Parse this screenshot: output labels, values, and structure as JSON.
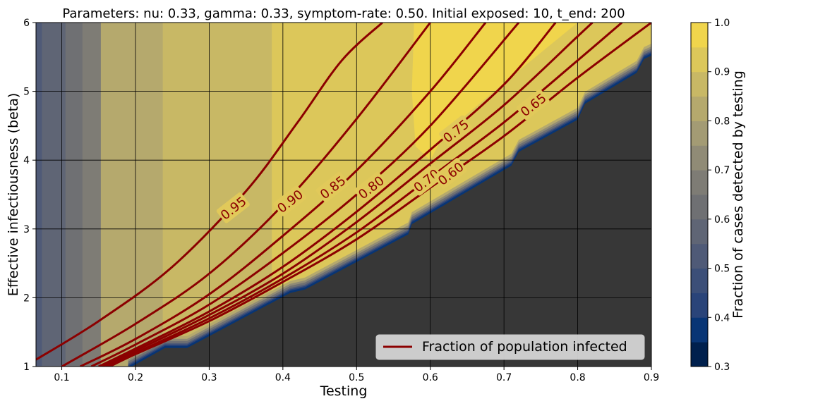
{
  "chart_data": {
    "type": "heatmap",
    "title": "Parameters: nu: 0.33, gamma: 0.33, symptom-rate: 0.50. Initial exposed: 10, t_end: 200",
    "xlabel": "Testing",
    "ylabel": "Effective infectiousness (beta)",
    "xlim": [
      0.065,
      0.9
    ],
    "ylim": [
      1,
      6
    ],
    "x_ticks": [
      "0.1",
      "0.2",
      "0.3",
      "0.4",
      "0.5",
      "0.6",
      "0.7",
      "0.8",
      "0.9"
    ],
    "y_ticks": [
      "1",
      "2",
      "3",
      "4",
      "5",
      "6"
    ],
    "grid": true,
    "colorbar": {
      "label": "Fraction of cases detected by testing",
      "ticks": [
        "0.3",
        "0.4",
        "0.5",
        "0.6",
        "0.7",
        "0.8",
        "0.9",
        "1.0"
      ],
      "levels": [
        0.3,
        0.35,
        0.4,
        0.45,
        0.5,
        0.55,
        0.6,
        0.65,
        0.7,
        0.75,
        0.8,
        0.85,
        0.9,
        0.95,
        1.0
      ],
      "colors": [
        "#00204d",
        "#083575",
        "#2a4479",
        "#3c4f78",
        "#4f5a77",
        "#5f6575",
        "#6f7073",
        "#7e7c75",
        "#908b76",
        "#a39b74",
        "#b5a96d",
        "#c8b865",
        "#dcc75a",
        "#f0d54c"
      ]
    },
    "no_infection_region_color": "#373737",
    "threshold_boundary": [
      {
        "x": 0.19,
        "y": 1.0
      },
      {
        "x": 0.24,
        "y": 1.3
      },
      {
        "x": 0.27,
        "y": 1.3
      },
      {
        "x": 0.41,
        "y": 2.1
      },
      {
        "x": 0.43,
        "y": 2.15
      },
      {
        "x": 0.57,
        "y": 2.95
      },
      {
        "x": 0.575,
        "y": 3.1
      },
      {
        "x": 0.71,
        "y": 3.95
      },
      {
        "x": 0.72,
        "y": 4.15
      },
      {
        "x": 0.8,
        "y": 4.62
      },
      {
        "x": 0.81,
        "y": 4.85
      },
      {
        "x": 0.88,
        "y": 5.3
      },
      {
        "x": 0.89,
        "y": 5.5
      },
      {
        "x": 0.9,
        "y": 5.55
      }
    ],
    "detection_bands": [
      {
        "x0": 0.065,
        "x1": 0.073,
        "value": 0.52
      },
      {
        "x0": 0.073,
        "x1": 0.082,
        "value": 0.55
      },
      {
        "x0": 0.082,
        "x1": 0.105,
        "value": 0.59
      },
      {
        "x0": 0.105,
        "x1": 0.128,
        "value": 0.63
      },
      {
        "x0": 0.128,
        "x1": 0.153,
        "value": 0.67
      },
      {
        "x0": 0.153,
        "x1": 0.237,
        "value": 0.8
      },
      {
        "x0": 0.237,
        "x1": 0.295,
        "value": 0.85
      },
      {
        "x0": 0.295,
        "x1": 0.385,
        "value": 0.88
      },
      {
        "x0": 0.385,
        "x1": 0.57,
        "value": 0.92
      },
      {
        "x0": 0.57,
        "x1": 0.9,
        "value": 0.93
      }
    ],
    "high_detection_region": {
      "value": 0.97,
      "outline": [
        {
          "x": 0.578,
          "y": 6.0
        },
        {
          "x": 0.8,
          "y": 6.0
        },
        {
          "x": 0.72,
          "y": 5.3
        },
        {
          "x": 0.62,
          "y": 4.4
        },
        {
          "x": 0.6,
          "y": 4.0
        },
        {
          "x": 0.58,
          "y": 4.2
        },
        {
          "x": 0.575,
          "y": 5.0
        }
      ]
    },
    "contours": [
      {
        "label": "0.95",
        "points": [
          {
            "x": 0.065,
            "y": 1.1
          },
          {
            "x": 0.15,
            "y": 1.66
          },
          {
            "x": 0.25,
            "y": 2.45
          },
          {
            "x": 0.35,
            "y": 3.55
          },
          {
            "x": 0.42,
            "y": 4.55
          },
          {
            "x": 0.48,
            "y": 5.45
          },
          {
            "x": 0.535,
            "y": 6.0
          }
        ]
      },
      {
        "label": "0.90",
        "points": [
          {
            "x": 0.1,
            "y": 1.0
          },
          {
            "x": 0.2,
            "y": 1.62
          },
          {
            "x": 0.3,
            "y": 2.35
          },
          {
            "x": 0.4,
            "y": 3.35
          },
          {
            "x": 0.5,
            "y": 4.6
          },
          {
            "x": 0.6,
            "y": 6.0
          }
        ]
      },
      {
        "label": "0.85",
        "points": [
          {
            "x": 0.125,
            "y": 1.0
          },
          {
            "x": 0.2,
            "y": 1.4
          },
          {
            "x": 0.3,
            "y": 2.05
          },
          {
            "x": 0.4,
            "y": 2.9
          },
          {
            "x": 0.5,
            "y": 3.85
          },
          {
            "x": 0.6,
            "y": 5.0
          },
          {
            "x": 0.675,
            "y": 6.0
          }
        ]
      },
      {
        "label": "0.80",
        "points": [
          {
            "x": 0.14,
            "y": 1.0
          },
          {
            "x": 0.2,
            "y": 1.32
          },
          {
            "x": 0.3,
            "y": 1.9
          },
          {
            "x": 0.4,
            "y": 2.65
          },
          {
            "x": 0.5,
            "y": 3.5
          },
          {
            "x": 0.6,
            "y": 4.5
          },
          {
            "x": 0.72,
            "y": 6.0
          }
        ]
      },
      {
        "label": "0.75",
        "points": [
          {
            "x": 0.15,
            "y": 1.0
          },
          {
            "x": 0.2,
            "y": 1.26
          },
          {
            "x": 0.3,
            "y": 1.8
          },
          {
            "x": 0.4,
            "y": 2.45
          },
          {
            "x": 0.5,
            "y": 3.25
          },
          {
            "x": 0.6,
            "y": 4.15
          },
          {
            "x": 0.7,
            "y": 5.1
          },
          {
            "x": 0.77,
            "y": 6.0
          }
        ]
      },
      {
        "label": "0.70",
        "points": [
          {
            "x": 0.155,
            "y": 1.0
          },
          {
            "x": 0.2,
            "y": 1.23
          },
          {
            "x": 0.3,
            "y": 1.75
          },
          {
            "x": 0.4,
            "y": 2.35
          },
          {
            "x": 0.5,
            "y": 3.1
          },
          {
            "x": 0.6,
            "y": 3.95
          },
          {
            "x": 0.7,
            "y": 4.8
          },
          {
            "x": 0.8,
            "y": 5.8
          },
          {
            "x": 0.82,
            "y": 6.0
          }
        ]
      },
      {
        "label": "0.65",
        "points": [
          {
            "x": 0.16,
            "y": 1.0
          },
          {
            "x": 0.2,
            "y": 1.2
          },
          {
            "x": 0.3,
            "y": 1.7
          },
          {
            "x": 0.4,
            "y": 2.28
          },
          {
            "x": 0.5,
            "y": 2.95
          },
          {
            "x": 0.6,
            "y": 3.75
          },
          {
            "x": 0.7,
            "y": 4.55
          },
          {
            "x": 0.8,
            "y": 5.45
          },
          {
            "x": 0.86,
            "y": 6.0
          }
        ]
      },
      {
        "label": "0.60",
        "points": [
          {
            "x": 0.165,
            "y": 1.0
          },
          {
            "x": 0.2,
            "y": 1.18
          },
          {
            "x": 0.3,
            "y": 1.66
          },
          {
            "x": 0.4,
            "y": 2.23
          },
          {
            "x": 0.5,
            "y": 2.85
          },
          {
            "x": 0.6,
            "y": 3.6
          },
          {
            "x": 0.7,
            "y": 4.35
          },
          {
            "x": 0.8,
            "y": 5.2
          },
          {
            "x": 0.9,
            "y": 6.0
          }
        ]
      }
    ],
    "contour_color": "#8b0000",
    "contour_label_positions": [
      {
        "label": "0.95",
        "x": 0.333,
        "y": 3.3
      },
      {
        "label": "0.90",
        "x": 0.41,
        "y": 3.4
      },
      {
        "label": "0.85",
        "x": 0.468,
        "y": 3.6
      },
      {
        "label": "0.80",
        "x": 0.52,
        "y": 3.6
      },
      {
        "label": "0.75",
        "x": 0.635,
        "y": 4.42
      },
      {
        "label": "0.70",
        "x": 0.595,
        "y": 3.7
      },
      {
        "label": "0.65",
        "x": 0.74,
        "y": 4.8
      },
      {
        "label": "0.60",
        "x": 0.628,
        "y": 3.8
      }
    ],
    "legend": {
      "entries": [
        {
          "label": "Fraction of population infected",
          "color": "#8b0000"
        }
      ],
      "position": "lower-right"
    }
  }
}
